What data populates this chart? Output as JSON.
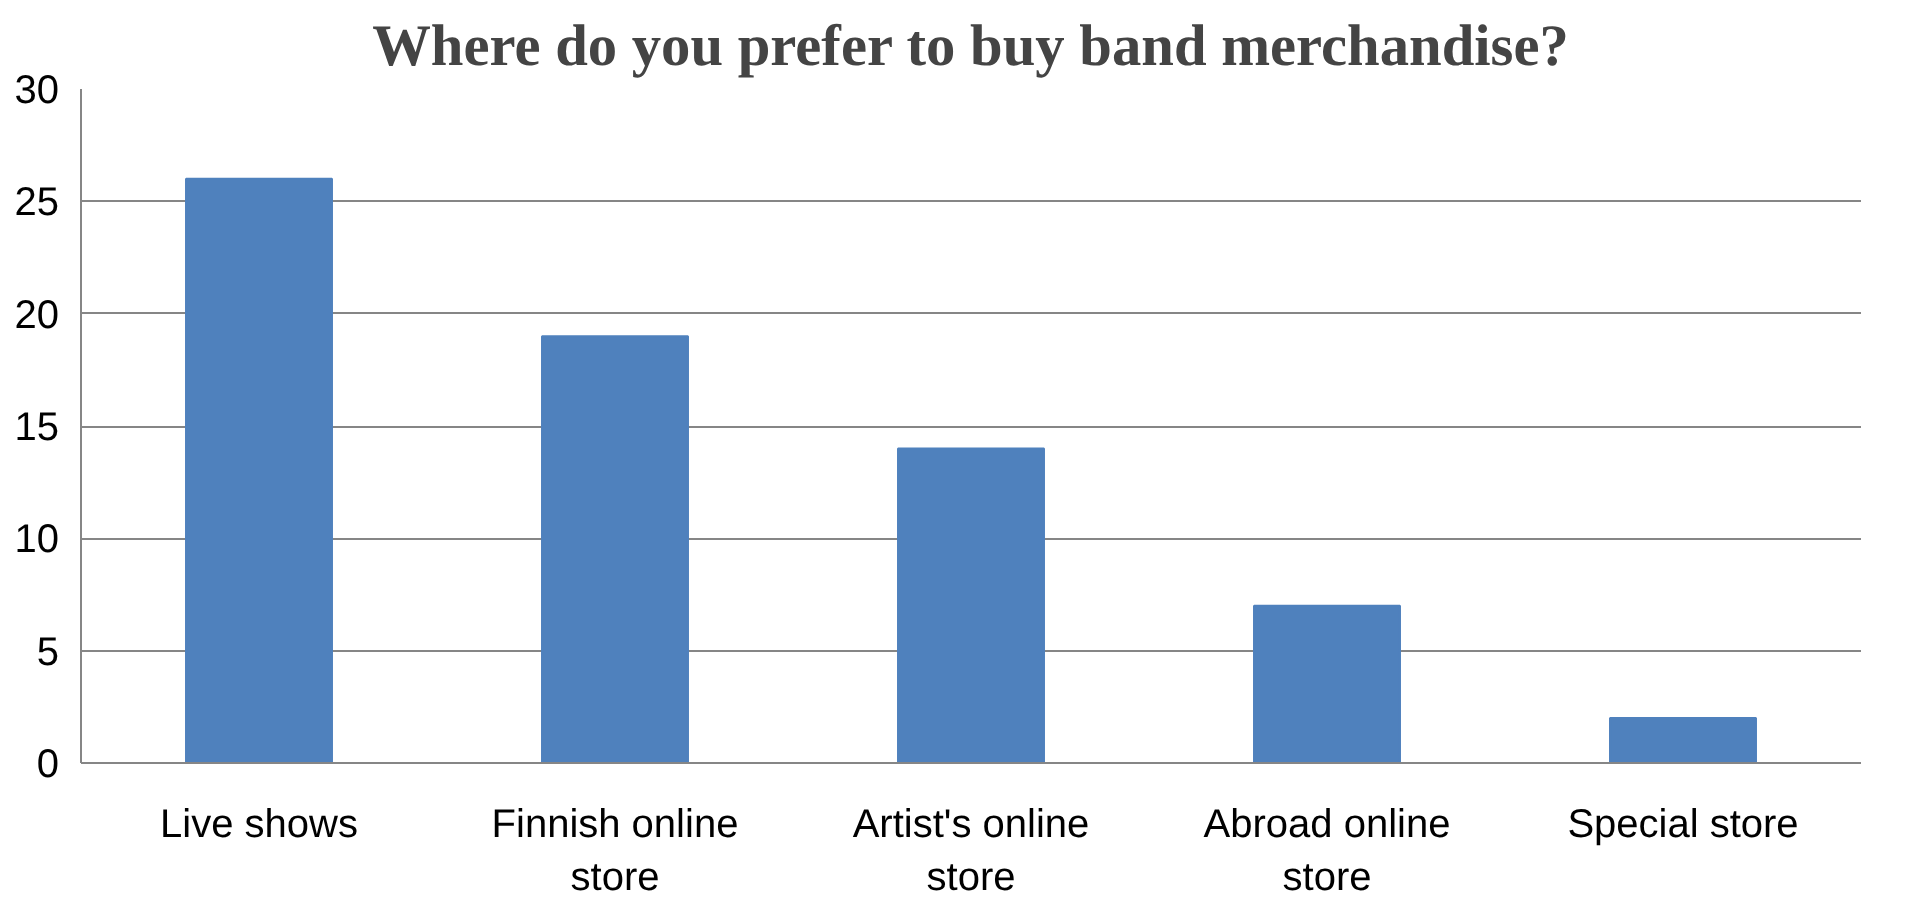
{
  "chart_data": {
    "type": "bar",
    "title": "Where do you prefer to buy band merchandise?",
    "categories": [
      "Live shows",
      "Finnish online store",
      "Artist's online store",
      "Abroad online store",
      "Special store"
    ],
    "values": [
      26,
      19,
      14,
      7,
      2
    ],
    "color": "#4f81bd",
    "ylim": [
      0,
      30
    ],
    "yticks": [
      0,
      5,
      10,
      15,
      20,
      25,
      30
    ],
    "grid": "y"
  }
}
